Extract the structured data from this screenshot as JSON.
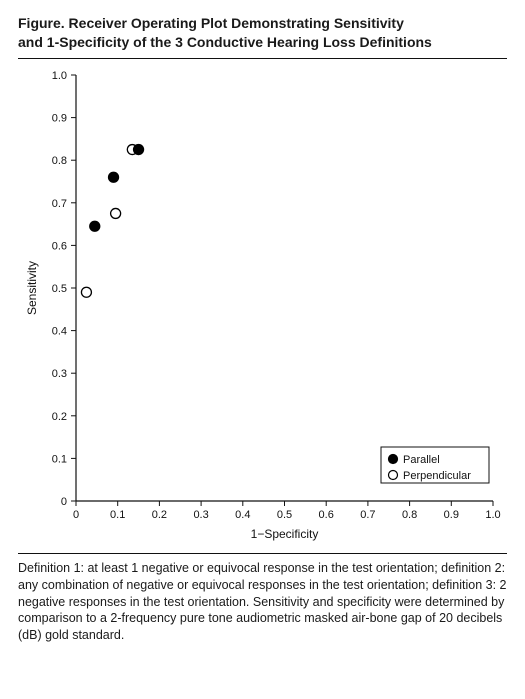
{
  "title_line1": "Figure. Receiver Operating Plot Demonstrating Sensitivity",
  "title_line2": "and 1-Specificity of the 3 Conductive Hearing Loss Definitions",
  "chart": {
    "type": "scatter",
    "xlabel": "1−Specificity",
    "ylabel": "Sensitivity",
    "xlim": [
      0,
      1.0
    ],
    "ylim": [
      0,
      1.0
    ],
    "xtick_step": 0.1,
    "ytick_step": 0.1,
    "xticks": [
      "0",
      "0.1",
      "0.2",
      "0.3",
      "0.4",
      "0.5",
      "0.6",
      "0.7",
      "0.8",
      "0.9",
      "1.0"
    ],
    "yticks": [
      "0",
      "0.1",
      "0.2",
      "0.3",
      "0.4",
      "0.5",
      "0.6",
      "0.7",
      "0.8",
      "0.9",
      "1.0"
    ],
    "background_color": "#ffffff",
    "axis_color": "#111111",
    "tick_length": 5,
    "marker_radius": 5,
    "marker_stroke_width": 1.3,
    "series": [
      {
        "name": "Parallel",
        "marker": "filled-circle",
        "fill": "#000000",
        "stroke": "#000000",
        "points": [
          {
            "x": 0.045,
            "y": 0.645
          },
          {
            "x": 0.09,
            "y": 0.76
          },
          {
            "x": 0.15,
            "y": 0.825
          }
        ]
      },
      {
        "name": "Perpendicular",
        "marker": "open-circle",
        "fill": "#ffffff",
        "stroke": "#000000",
        "points": [
          {
            "x": 0.025,
            "y": 0.49
          },
          {
            "x": 0.095,
            "y": 0.675
          },
          {
            "x": 0.135,
            "y": 0.825
          }
        ]
      }
    ],
    "legend": {
      "position": "bottom-right",
      "items": [
        {
          "label": "Parallel",
          "marker": "filled-circle"
        },
        {
          "label": "Perpendicular",
          "marker": "open-circle"
        }
      ]
    },
    "label_fontsize": 12,
    "tick_fontsize": 11
  },
  "caption": "Definition 1: at least 1 negative or equivocal response in the test orientation; definition 2: any combination of negative or equivocal responses in the test orientation; definition 3: 2 negative responses in the test orientation. Sensitivity and specificity were determined by comparison to a 2-frequency pure tone audiometric masked air-bone gap of 20 decibels (dB) gold standard."
}
